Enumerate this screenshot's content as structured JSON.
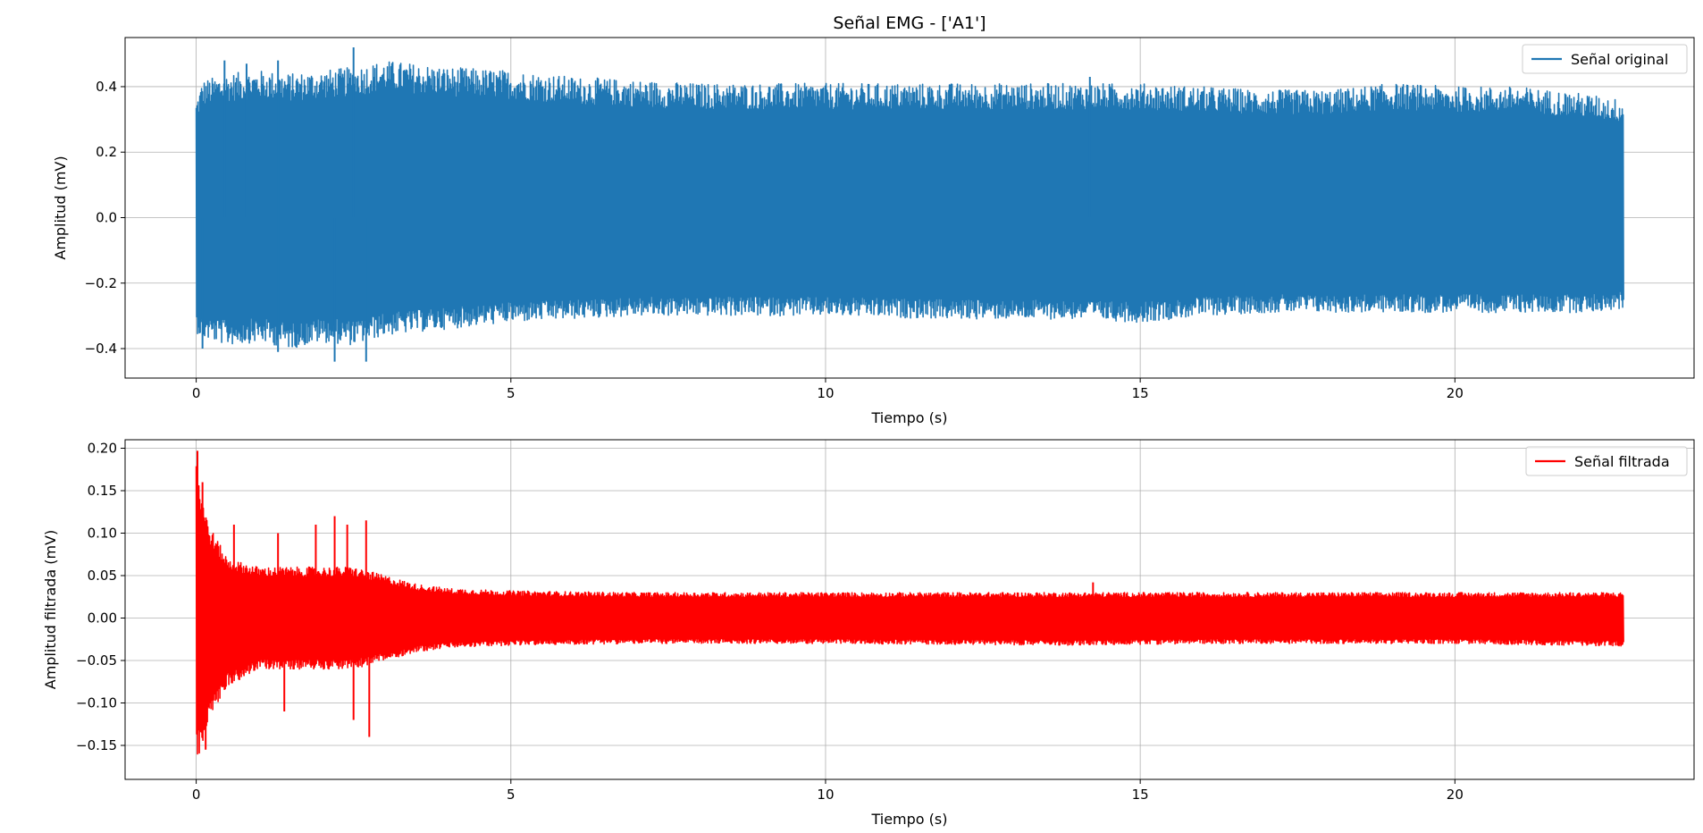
{
  "chart_data": [
    {
      "type": "line",
      "title": "Señal EMG - ['A1']",
      "xlabel": "Tiempo (s)",
      "ylabel": "Amplitud (mV)",
      "xlim": [
        -1.13,
        23.8
      ],
      "ylim": [
        -0.49,
        0.55
      ],
      "xticks": [
        0,
        5,
        10,
        15,
        20
      ],
      "yticks": [
        -0.4,
        -0.2,
        0.0,
        0.2,
        0.4
      ],
      "ytick_labels": [
        "−0.4",
        "−0.2",
        "0.0",
        "0.2",
        "0.4"
      ],
      "grid": true,
      "legend_position": "top-right",
      "series": [
        {
          "name": "Señal original",
          "color": "#1f77b4",
          "x_range": [
            0,
            22.68
          ],
          "envelope": {
            "t": [
              0.0,
              0.1,
              0.5,
              1.0,
              1.5,
              2.0,
              2.5,
              3.0,
              3.5,
              4.0,
              5.0,
              6.0,
              7.0,
              8.0,
              10.0,
              12.0,
              14.0,
              15.0,
              16.0,
              17.0,
              18.0,
              19.0,
              20.0,
              21.0,
              22.0,
              22.68
            ],
            "upper": [
              0.36,
              0.42,
              0.44,
              0.45,
              0.44,
              0.45,
              0.46,
              0.48,
              0.47,
              0.46,
              0.45,
              0.43,
              0.42,
              0.41,
              0.41,
              0.41,
              0.41,
              0.41,
              0.4,
              0.39,
              0.39,
              0.41,
              0.4,
              0.4,
              0.38,
              0.36
            ],
            "lower": [
              -0.35,
              -0.37,
              -0.39,
              -0.38,
              -0.4,
              -0.38,
              -0.39,
              -0.36,
              -0.35,
              -0.34,
              -0.32,
              -0.31,
              -0.3,
              -0.3,
              -0.3,
              -0.31,
              -0.31,
              -0.32,
              -0.3,
              -0.29,
              -0.29,
              -0.29,
              -0.29,
              -0.29,
              -0.29,
              -0.28
            ]
          },
          "spikes": [
            [
              0.45,
              0.48
            ],
            [
              0.8,
              0.47
            ],
            [
              1.3,
              0.48
            ],
            [
              2.5,
              0.52
            ],
            [
              2.2,
              -0.44
            ],
            [
              2.7,
              -0.44
            ],
            [
              1.3,
              -0.41
            ],
            [
              0.1,
              -0.4
            ],
            [
              14.2,
              0.43
            ]
          ]
        }
      ]
    },
    {
      "type": "line",
      "title": "",
      "xlabel": "Tiempo (s)",
      "ylabel": "Amplitud filtrada (mV)",
      "xlim": [
        -1.13,
        23.8
      ],
      "ylim": [
        -0.19,
        0.21
      ],
      "xticks": [
        0,
        5,
        10,
        15,
        20
      ],
      "yticks": [
        -0.15,
        -0.1,
        -0.05,
        0.0,
        0.05,
        0.1,
        0.15,
        0.2
      ],
      "ytick_labels": [
        "−0.15",
        "−0.10",
        "−0.05",
        "0.00",
        "0.05",
        "0.10",
        "0.15",
        "0.20"
      ],
      "grid": true,
      "legend_position": "top-right",
      "series": [
        {
          "name": "Señal filtrada",
          "color": "#ff0000",
          "x_range": [
            0,
            22.68
          ],
          "envelope": {
            "t": [
              0.0,
              0.05,
              0.2,
              0.5,
              1.0,
              1.5,
              2.0,
              2.5,
              3.0,
              3.5,
              4.0,
              5.0,
              7.0,
              10.0,
              14.0,
              16.0,
              20.0,
              22.68
            ],
            "upper": [
              0.2,
              0.16,
              0.11,
              0.07,
              0.06,
              0.06,
              0.06,
              0.06,
              0.05,
              0.04,
              0.035,
              0.032,
              0.03,
              0.03,
              0.03,
              0.03,
              0.03,
              0.03
            ],
            "lower": [
              -0.17,
              -0.16,
              -0.12,
              -0.08,
              -0.06,
              -0.06,
              -0.06,
              -0.06,
              -0.05,
              -0.04,
              -0.035,
              -0.032,
              -0.03,
              -0.03,
              -0.032,
              -0.03,
              -0.03,
              -0.033
            ]
          },
          "spikes": [
            [
              0.02,
              0.197
            ],
            [
              0.1,
              0.16
            ],
            [
              0.15,
              -0.155
            ],
            [
              0.6,
              0.11
            ],
            [
              1.3,
              0.1
            ],
            [
              1.4,
              -0.11
            ],
            [
              1.9,
              0.11
            ],
            [
              2.2,
              0.12
            ],
            [
              2.4,
              0.11
            ],
            [
              2.5,
              -0.12
            ],
            [
              2.7,
              0.115
            ],
            [
              2.75,
              -0.14
            ],
            [
              14.25,
              0.042
            ]
          ]
        }
      ]
    }
  ]
}
